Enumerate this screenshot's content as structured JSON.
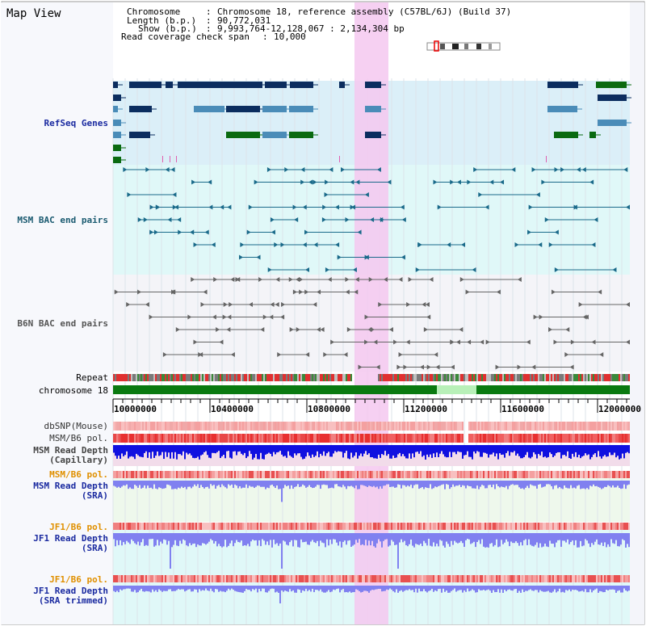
{
  "title": "Map View",
  "info": {
    "chromosome_label": "Chromosome",
    "chromosome_value": "Chromosome 18, reference assembly (C57BL/6J) (Build 37)",
    "length_label": "Length (b.p.)",
    "length_value": "90,772,031",
    "show_label": "Show (b.p.)",
    "show_value": "9,993,764-12,128,067 : 2,134,304 bp",
    "coverage_label": "Read coverage check span",
    "coverage_value": "10,000"
  },
  "tracks": {
    "refseq": "RefSeq Genes",
    "msm_bac": "MSM BAC end pairs",
    "b6n_bac": "B6N BAC end pairs",
    "repeat": "Repeat",
    "chromosome": "chromosome 18",
    "dbsnp": "dbSNP(Mouse)",
    "msm_b6_pol_1": "MSM/B6 pol.",
    "msm_depth_cap_1": "MSM Read Depth",
    "msm_depth_cap_2": "(Capillary)",
    "msm_b6_pol_2": "MSM/B6 pol.",
    "msm_depth_sra_1": "MSM Read Depth",
    "msm_depth_sra_2": "(SRA)",
    "jf1_b6_pol_1": "JF1/B6 pol.",
    "jf1_depth_sra_1": "JF1 Read Depth",
    "jf1_depth_sra_2": "(SRA)",
    "jf1_b6_pol_2": "JF1/B6 pol.",
    "jf1_depth_trim_1": "JF1 Read Depth",
    "jf1_depth_trim_2": "(SRA trimmed)"
  },
  "axis": {
    "ticks": [
      "10000000",
      "10400000",
      "10800000",
      "11200000",
      "11600000",
      "12000000"
    ]
  },
  "colors": {
    "refseq_bg": "#dbeff8",
    "msm_bg": "#e0f8f8",
    "b6n_bg": "#f4f4f8",
    "highlight": "#f4c8f0",
    "gene_dark": "#0b2d5f",
    "gene_mid": "#4a8cb8",
    "gene_green": "#0a6a10",
    "msm_pair": "#1a6a8a",
    "b6n_pair": "#666666",
    "chrom_green": "#0a7a10",
    "chrom_light": "#b8f0b8",
    "snp": "#f4a0a0",
    "pol_red": "#e83030",
    "depth_blue": "#1010e0",
    "depth_light": "#8080f0",
    "label_blue": "#1a2aa0",
    "label_teal": "#1a5a70",
    "label_orange": "#e09000"
  }
}
